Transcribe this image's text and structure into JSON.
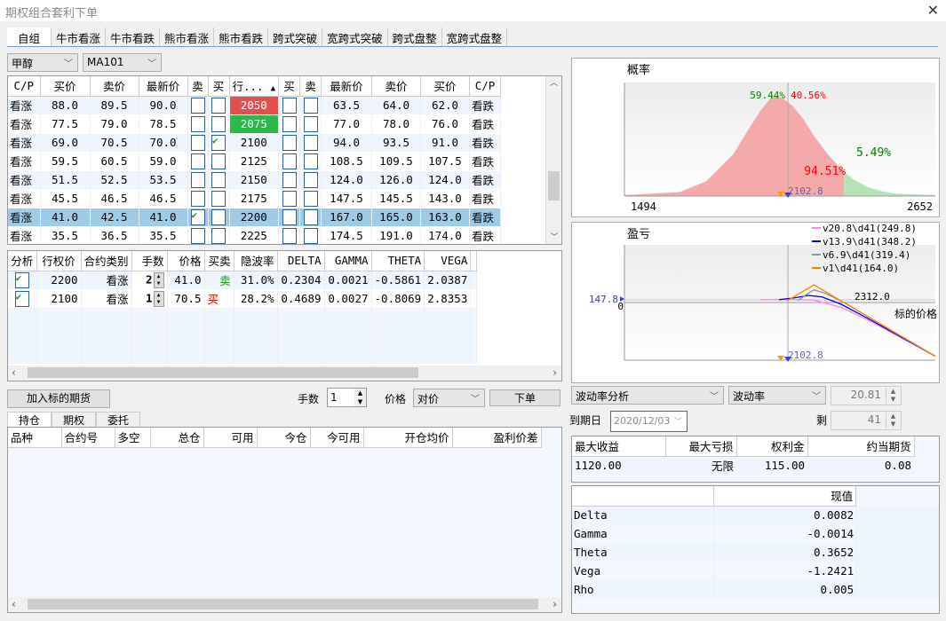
{
  "window": {
    "title": "期权组合套利下单",
    "close": "✕"
  },
  "tabs": [
    "自组",
    "牛市看涨",
    "牛市看跌",
    "熊市看涨",
    "熊市看跌",
    "跨式突破",
    "宽跨式突破",
    "跨式盘整",
    "宽跨式盘整"
  ],
  "active_tab": 0,
  "product_select": "甲醇",
  "contract_select": "MA101",
  "chain": {
    "headers": [
      "C/P",
      "买价",
      "卖价",
      "最新价",
      "卖",
      "买",
      "行...",
      "买",
      "卖",
      "最新价",
      "卖价",
      "买价",
      "C/P"
    ],
    "sort_indicator": "▲",
    "selected_row": 6,
    "strike_colors": {
      "2050": "#e05050",
      "2075": "#2db84a"
    },
    "rows": [
      [
        "看涨",
        "88.0",
        "89.5",
        "90.0",
        false,
        false,
        "2050",
        false,
        false,
        "63.5",
        "64.0",
        "62.0",
        "看跌"
      ],
      [
        "看涨",
        "77.5",
        "79.0",
        "78.5",
        false,
        false,
        "2075",
        false,
        false,
        "77.0",
        "78.0",
        "76.0",
        "看跌"
      ],
      [
        "看涨",
        "69.0",
        "70.5",
        "70.0",
        false,
        true,
        "2100",
        false,
        false,
        "94.0",
        "93.5",
        "91.0",
        "看跌"
      ],
      [
        "看涨",
        "59.5",
        "60.5",
        "59.0",
        false,
        false,
        "2125",
        false,
        false,
        "108.5",
        "109.5",
        "107.5",
        "看跌"
      ],
      [
        "看涨",
        "51.5",
        "52.5",
        "53.5",
        false,
        false,
        "2150",
        false,
        false,
        "124.0",
        "126.0",
        "124.0",
        "看跌"
      ],
      [
        "看涨",
        "45.5",
        "46.5",
        "46.5",
        false,
        false,
        "2175",
        false,
        false,
        "147.5",
        "145.5",
        "143.0",
        "看跌"
      ],
      [
        "看涨",
        "41.0",
        "42.5",
        "41.0",
        true,
        false,
        "2200",
        false,
        false,
        "167.0",
        "165.0",
        "163.0",
        "看跌"
      ],
      [
        "看涨",
        "35.5",
        "36.5",
        "35.5",
        false,
        false,
        "2225",
        false,
        false,
        "174.5",
        "191.0",
        "174.0",
        "看跌"
      ]
    ]
  },
  "legs": {
    "headers": [
      "分析",
      "行权价",
      "合约类别",
      "手数",
      "价格",
      "买卖",
      "隐波率",
      "DELTA",
      "GAMMA",
      "THETA",
      "VEGA"
    ],
    "rows": [
      {
        "checked": true,
        "strike": "2200",
        "type": "看涨",
        "qty": "2",
        "price": "41.0",
        "side": "卖",
        "side_color": "#1a9a1a",
        "iv": "31.0%",
        "delta": "0.2304",
        "gamma": "0.0021",
        "theta": "-0.5861",
        "vega": "2.0387"
      },
      {
        "checked": true,
        "strike": "2100",
        "type": "看涨",
        "qty": "1",
        "price": "70.5",
        "side": "买",
        "side_color": "#e00000",
        "iv": "28.2%",
        "delta": "0.4689",
        "gamma": "0.0027",
        "theta": "-0.8069",
        "vega": "2.8353"
      }
    ]
  },
  "order": {
    "add_future": "加入标的期货",
    "qty_label": "手数",
    "qty": "1",
    "price_label": "价格",
    "price_type": "对价",
    "submit": "下单"
  },
  "bottom_tabs": [
    "持仓",
    "期权",
    "委托"
  ],
  "positions_headers": [
    "品种",
    "合约号",
    "多空",
    "总仓",
    "可用",
    "今仓",
    "今可用",
    "开仓均价",
    "盈利价差"
  ],
  "analysis": {
    "mode": "波动率分析",
    "param": "波动率",
    "param_value": "20.81",
    "expiry_label": "到期日",
    "expiry": "2020/12/03",
    "remain_label": "剩",
    "remain": "41"
  },
  "results": {
    "headers": [
      "最大收益",
      "最大亏损",
      "权利金",
      "约当期货"
    ],
    "values": [
      "1120.00",
      "无限",
      "115.00",
      "0.08"
    ]
  },
  "greeks": {
    "header": "现值",
    "rows": [
      [
        "Delta",
        "0.0082"
      ],
      [
        "Gamma",
        "-0.0014"
      ],
      [
        "Theta",
        "0.3652"
      ],
      [
        "Vega",
        "-1.2421"
      ],
      [
        "Rho",
        "0.005"
      ]
    ]
  },
  "chart_data": [
    {
      "type": "area",
      "title": "概率",
      "xlim": [
        1494,
        2652
      ],
      "tick_labels": [
        "1494",
        "2652"
      ],
      "annotations": {
        "left_pct": "59.44%",
        "right_pct": "40.56%",
        "below_pct": "94.51%",
        "above_pct": "5.49%",
        "current_price": "2102.8",
        "breakeven": "2312"
      },
      "colors": {
        "below": "#f4aaaa",
        "above": "#b5e3b5"
      },
      "points": [
        [
          1494,
          0.01
        ],
        [
          1700,
          0.04
        ],
        [
          1800,
          0.15
        ],
        [
          1900,
          0.42
        ],
        [
          1950,
          0.64
        ],
        [
          2000,
          0.85
        ],
        [
          2040,
          0.98
        ],
        [
          2056,
          1.0
        ],
        [
          2080,
          0.98
        ],
        [
          2120,
          0.9
        ],
        [
          2160,
          0.77
        ],
        [
          2200,
          0.6
        ],
        [
          2250,
          0.42
        ],
        [
          2312,
          0.24
        ],
        [
          2350,
          0.16
        ],
        [
          2400,
          0.09
        ],
        [
          2450,
          0.05
        ],
        [
          2500,
          0.025
        ],
        [
          2652,
          0.01
        ]
      ]
    },
    {
      "type": "line",
      "title": "盈亏",
      "xlabel": "标的价格",
      "xlim": [
        1494,
        2652
      ],
      "ylim": [
        -365,
        365
      ],
      "annotations": {
        "y_marker": "147.8",
        "zero": "0",
        "breakeven": "2312.0",
        "current_price": "2102.8"
      },
      "series": [
        {
          "name": "v20.8\\d41(249.8)",
          "color": "#ff80ff",
          "points": [
            [
              2000,
              18
            ],
            [
              2100,
              20
            ],
            [
              2200,
              15
            ],
            [
              2300,
              -30
            ],
            [
              2400,
              -110
            ],
            [
              2500,
              -200
            ],
            [
              2652,
              -340
            ]
          ]
        },
        {
          "name": "v13.9\\d41(348.2)",
          "color": "#0000ee",
          "points": [
            [
              2070,
              18
            ],
            [
              2130,
              30
            ],
            [
              2180,
              45
            ],
            [
              2230,
              35
            ],
            [
              2300,
              -10
            ],
            [
              2400,
              -100
            ],
            [
              2500,
              -195
            ],
            [
              2652,
              -340
            ]
          ]
        },
        {
          "name": "v6.9\\d41(319.4)",
          "color": "#7f9f8f",
          "points": [
            [
              2140,
              12
            ],
            [
              2180,
              60
            ],
            [
              2200,
              80
            ],
            [
              2240,
              60
            ],
            [
              2312,
              0
            ],
            [
              2400,
              -88
            ],
            [
              2652,
              -340
            ]
          ]
        },
        {
          "name": "v1\\d41(164.0)",
          "color": "#ff8000",
          "points": [
            [
              2100,
              11.5
            ],
            [
              2200,
              111.5
            ],
            [
              2312,
              0
            ],
            [
              2652,
              -340
            ]
          ]
        }
      ]
    }
  ]
}
